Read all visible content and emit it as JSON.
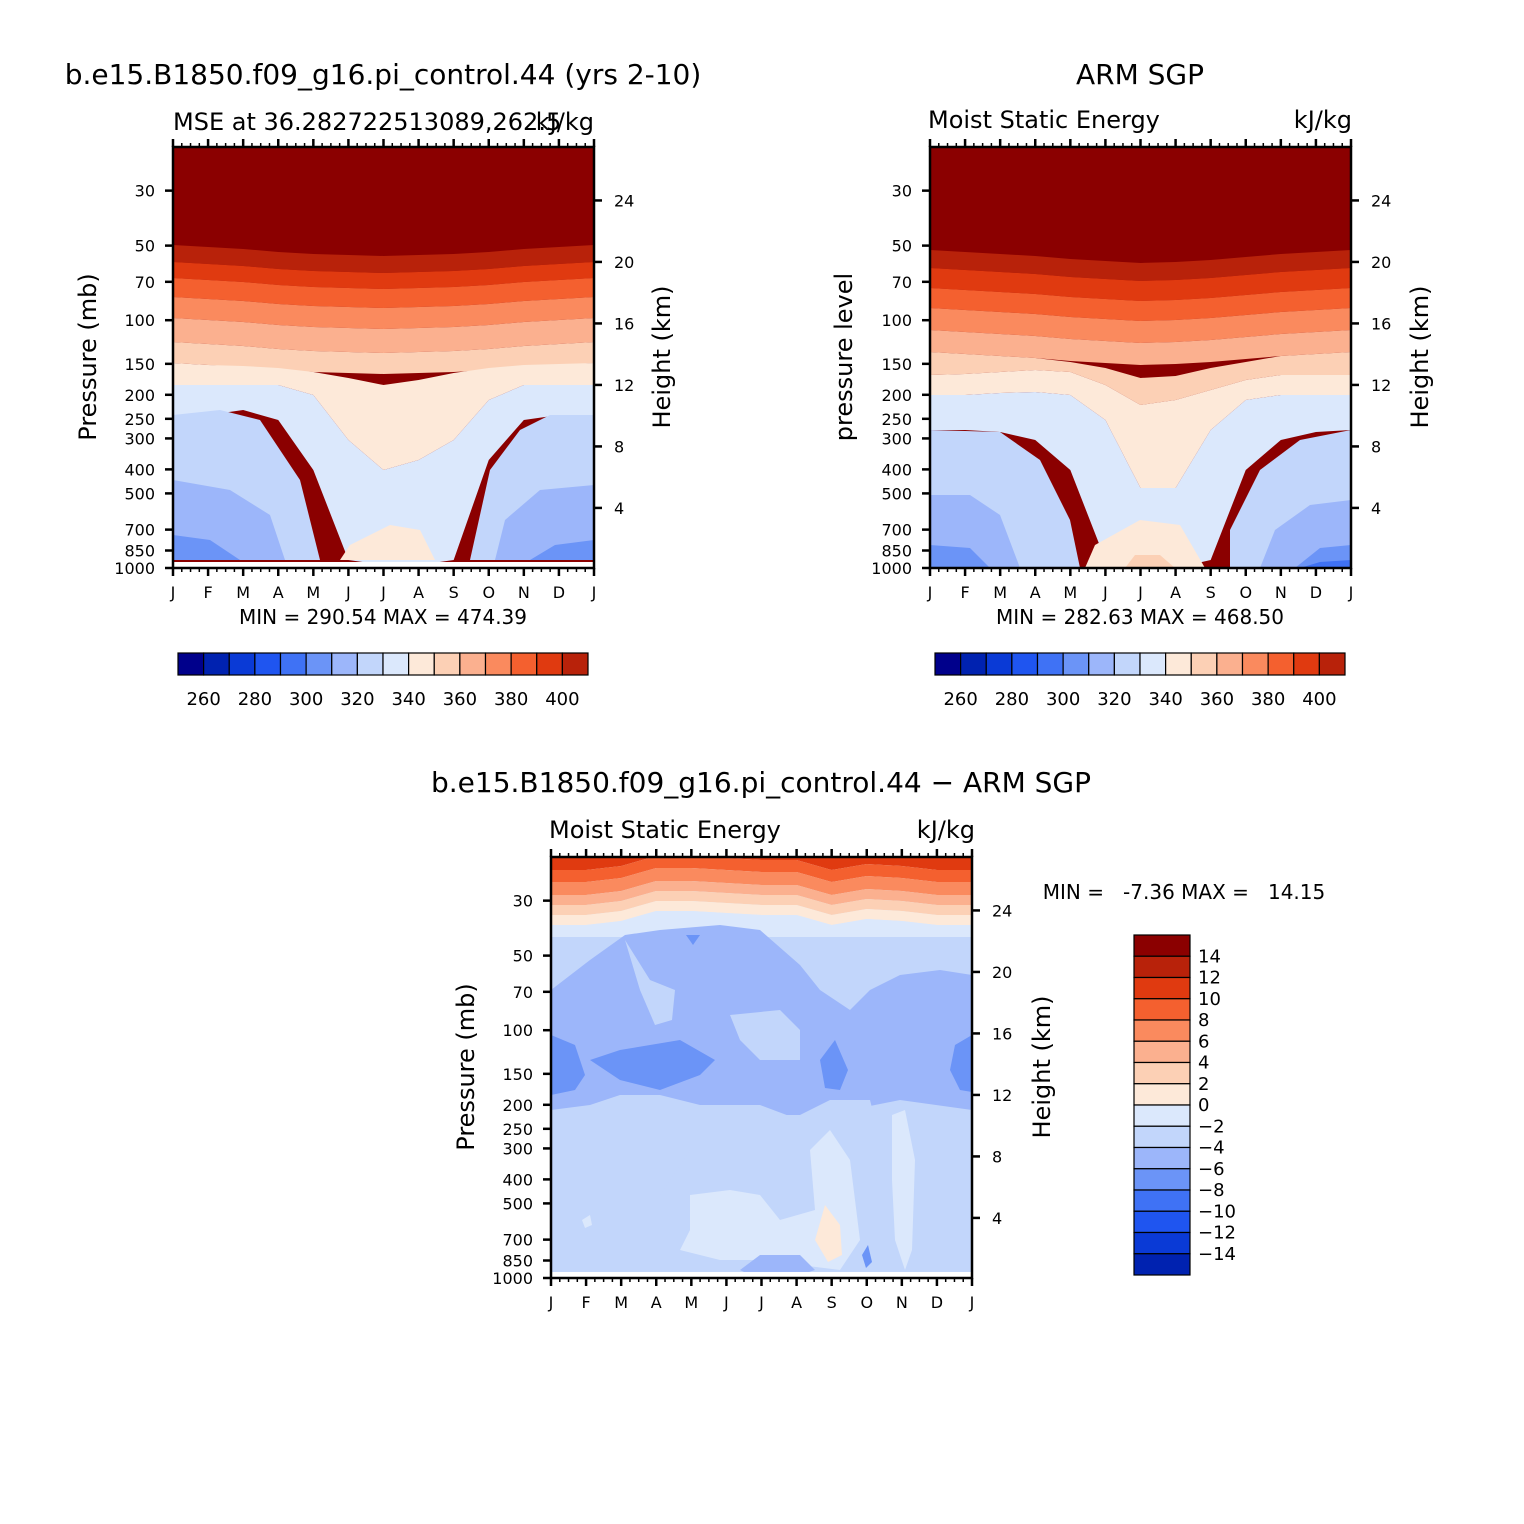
{
  "chart_data": [
    {
      "type": "heatmap",
      "title": "b.e15.B1850.f09_g16.pi_control.44 (yrs 2-10)",
      "subtitle_left": "MSE at 36.2827225130​89,262.5",
      "subtitle_right": "kJ/kg",
      "xlabel": "",
      "ylabel": "Pressure (mb)",
      "y2label": "Height (km)",
      "months": [
        "J",
        "F",
        "M",
        "A",
        "M",
        "J",
        "J",
        "A",
        "S",
        "O",
        "N",
        "D",
        "J"
      ],
      "pressure_ticks": [
        30,
        50,
        70,
        100,
        150,
        200,
        250,
        300,
        400,
        500,
        700,
        850,
        1000
      ],
      "height_ticks": [
        4,
        8,
        12,
        16,
        20,
        24
      ],
      "ylim": [
        1000,
        20
      ],
      "min_max_text": "MIN = 290.54 MAX = 474.39",
      "colorbar_ticks": [
        "260",
        "280",
        "300",
        "320",
        "340",
        "360",
        "380",
        "400"
      ],
      "levels_start": 250,
      "levels_step": 10,
      "n_colors": 16,
      "description_values": {
        "x": [
          0,
          1,
          2,
          3,
          4,
          5,
          6,
          7,
          8,
          9,
          10,
          11,
          12
        ]
      }
    },
    {
      "type": "heatmap",
      "title": "ARM SGP",
      "subtitle_left": "Moist Static Energy",
      "subtitle_right": "kJ/kg",
      "xlabel": "",
      "ylabel": "pressure level",
      "y2label": "Height (km)",
      "months": [
        "J",
        "F",
        "M",
        "A",
        "M",
        "J",
        "J",
        "A",
        "S",
        "O",
        "N",
        "D",
        "J"
      ],
      "pressure_ticks": [
        30,
        50,
        70,
        100,
        150,
        200,
        250,
        300,
        400,
        500,
        700,
        850,
        1000
      ],
      "height_ticks": [
        4,
        8,
        12,
        16,
        20,
        24
      ],
      "ylim": [
        1000,
        20
      ],
      "min_max_text": "MIN = 282.63 MAX = 468.50",
      "colorbar_ticks": [
        "260",
        "280",
        "300",
        "320",
        "340",
        "360",
        "380",
        "400"
      ],
      "levels_start": 250,
      "levels_step": 10,
      "n_colors": 16
    },
    {
      "type": "heatmap",
      "title": "b.e15.B1850.f09_g16.pi_control.44 − ARM SGP",
      "subtitle_left": "Moist Static Energy",
      "subtitle_right": "kJ/kg",
      "xlabel": "",
      "ylabel": "Pressure (mb)",
      "y2label": "Height (km)",
      "months": [
        "J",
        "F",
        "M",
        "A",
        "M",
        "J",
        "J",
        "A",
        "S",
        "O",
        "N",
        "D",
        "J"
      ],
      "pressure_ticks": [
        30,
        50,
        70,
        100,
        150,
        200,
        250,
        300,
        400,
        500,
        700,
        850,
        1000
      ],
      "height_ticks": [
        4,
        8,
        12,
        16,
        20,
        24
      ],
      "ylim": [
        1000,
        20
      ],
      "min_max_text": "MIN =   -7.36 MAX =   14.15",
      "colorbar_ticks": [
        "14",
        "12",
        "10",
        "8",
        "6",
        "4",
        "2",
        "0",
        "−2",
        "−4",
        "−6",
        "−8",
        "−10",
        "−12",
        "−14"
      ],
      "levels_start": -16,
      "levels_step": 2,
      "n_colors": 16
    }
  ],
  "colors": {
    "palette": [
      "#00008b",
      "#0022b0",
      "#0a3ad6",
      "#1f55f0",
      "#3f72f5",
      "#6b94f7",
      "#9cb6fa",
      "#c2d6fb",
      "#dbe8fc",
      "#fde9d9",
      "#fcd0b5",
      "#fbb08f",
      "#fa8a5e",
      "#f4602f",
      "#e03a10",
      "#b8220a",
      "#8b0000"
    ]
  }
}
